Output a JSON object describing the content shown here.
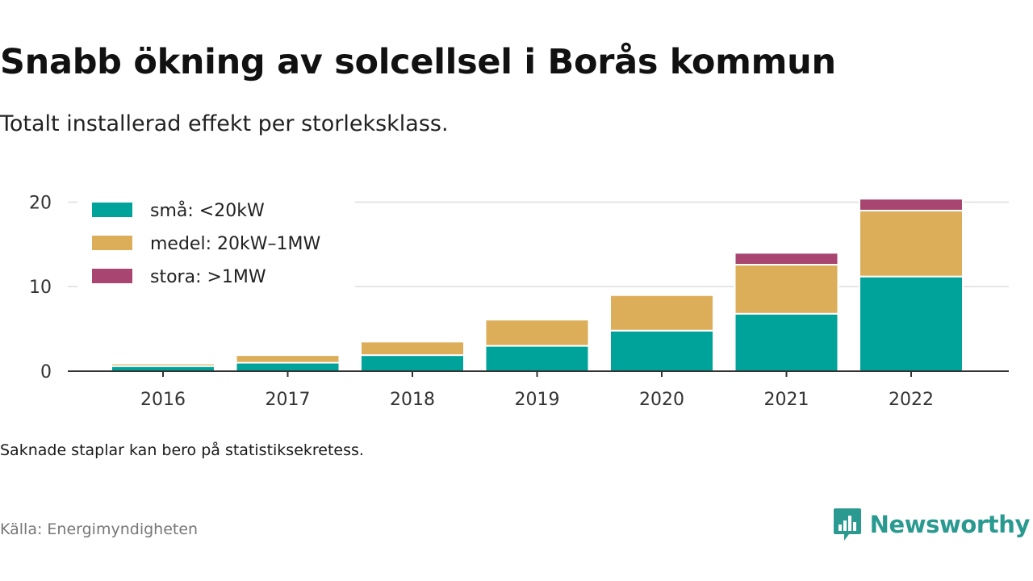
{
  "title": "Snabb ökning av solcellsel i Borås kommun",
  "subtitle": "Totalt installerad effekt per storleksklass.",
  "note": "Saknade staplar kan bero på statistiksekretess.",
  "source": "Källa: Energimyndigheten",
  "brand": "Newsworthy",
  "colors": {
    "sma": "#00a39a",
    "medel": "#dcae5a",
    "stora": "#a84570",
    "grid": "#dddddd",
    "axis": "#333333",
    "brand": "#2a9a91"
  },
  "chart_data": {
    "type": "bar",
    "stacked": true,
    "categories": [
      "2016",
      "2017",
      "2018",
      "2019",
      "2020",
      "2021",
      "2022"
    ],
    "series": [
      {
        "name": "små: <20kW",
        "color": "#00a39a",
        "values": [
          0.6,
          1.0,
          1.9,
          3.0,
          4.8,
          6.8,
          11.2
        ]
      },
      {
        "name": "medel: 20kW–1MW",
        "color": "#dcae5a",
        "values": [
          0.3,
          0.9,
          1.6,
          3.1,
          4.2,
          5.8,
          7.8
        ]
      },
      {
        "name": "stora: >1MW",
        "color": "#a84570",
        "values": [
          0,
          0,
          0,
          0,
          0,
          1.4,
          1.4
        ]
      }
    ],
    "yticks": [
      0,
      10,
      20
    ],
    "ylim": [
      0,
      21
    ],
    "grid": true,
    "legend_position": "top-left"
  }
}
